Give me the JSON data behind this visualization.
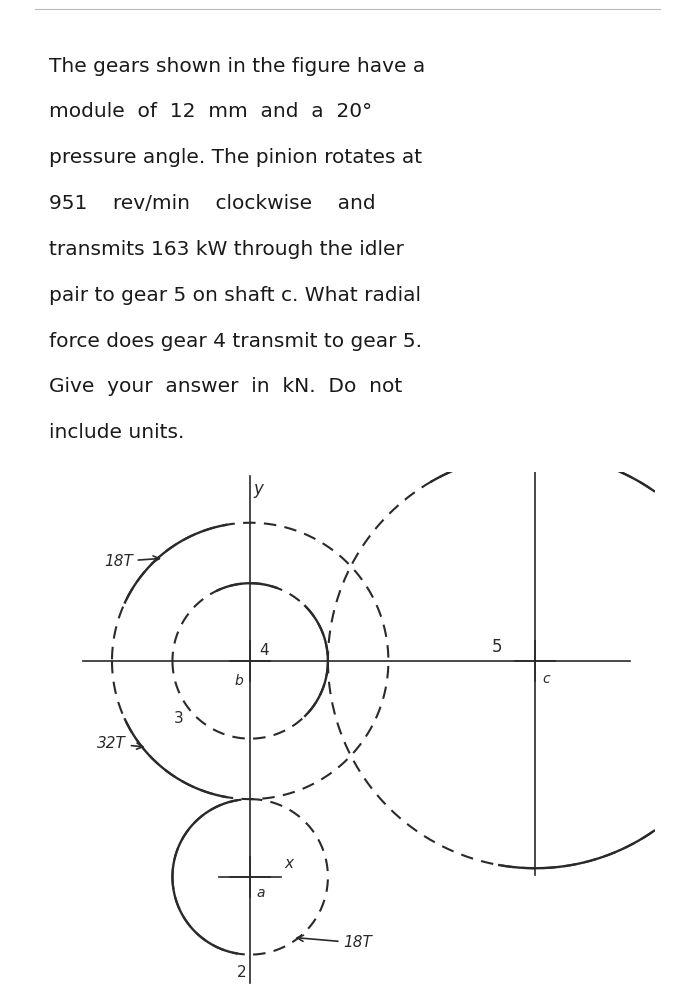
{
  "bg_color": "#ffffff",
  "text_color": "#1a1a1a",
  "line_color": "#2a2a2a",
  "font_size_text": 14.5,
  "fig_width": 6.95,
  "fig_height": 10.05,
  "lines": [
    "The gears shown in the figure have a",
    "module  of  12  mm  and  a  20°",
    "pressure angle. The pinion rotates at",
    "951    rev/min    clockwise    and",
    "transmits 163 kW through the idler",
    "pair to gear 5 on shaft c. What radial",
    "force does gear 4 transmit to gear 5.",
    "Give  your  answer  in  kN.  Do  not",
    "include units."
  ],
  "r2": 0.108,
  "r3": 0.192,
  "r4": 0.108,
  "r5": 0.288,
  "module_mm": 12
}
